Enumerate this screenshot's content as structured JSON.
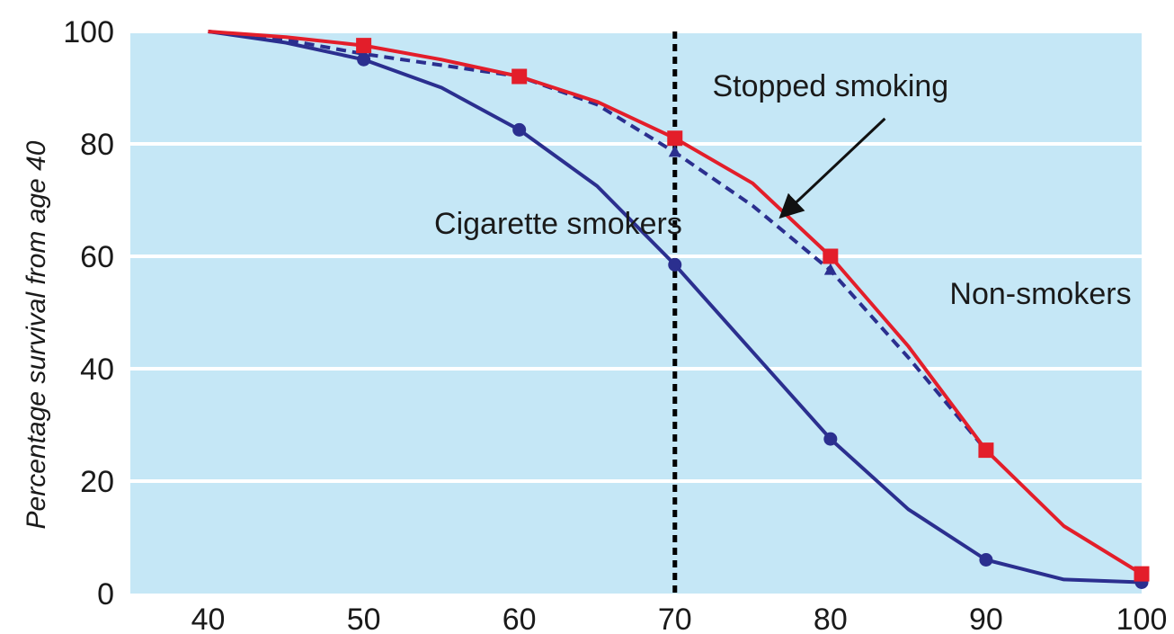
{
  "chart_data": {
    "type": "line",
    "title": "",
    "xlabel": "",
    "ylabel": "Percentage survival from age 40",
    "xlim": [
      35,
      100
    ],
    "ylim": [
      0,
      100
    ],
    "x_ticks": [
      40,
      50,
      60,
      70,
      80,
      90,
      100
    ],
    "y_ticks": [
      0,
      20,
      40,
      60,
      80,
      100
    ],
    "grid": true,
    "background_color": "#c5e7f6",
    "reference_line": {
      "x": 70,
      "style": "dotted",
      "color": "#000000"
    },
    "series": [
      {
        "name": "Cigarette smokers",
        "color": "#2b2f8f",
        "line_style": "solid",
        "marker": "circle",
        "x": [
          40,
          45,
          50,
          55,
          60,
          65,
          70,
          75,
          80,
          85,
          90,
          95,
          100
        ],
        "y": [
          100,
          98,
          95,
          90,
          82.5,
          72.5,
          58.5,
          43,
          27.5,
          15,
          6,
          2.5,
          2
        ],
        "marker_x": [
          50,
          60,
          70,
          80,
          90,
          100
        ]
      },
      {
        "name": "Stopped smoking",
        "color": "#2b2f8f",
        "line_style": "dashed",
        "marker": "triangle",
        "x": [
          40,
          45,
          50,
          55,
          60,
          65,
          70,
          75,
          80,
          85,
          90
        ],
        "y": [
          100,
          98.5,
          96,
          94,
          92,
          87,
          78.5,
          69,
          57.5,
          42,
          25.5
        ],
        "marker_x": [
          50,
          60,
          70,
          80,
          90
        ]
      },
      {
        "name": "Non-smokers",
        "color": "#e31e2a",
        "line_style": "solid",
        "marker": "square",
        "x": [
          40,
          45,
          50,
          55,
          60,
          65,
          70,
          75,
          80,
          85,
          90,
          95,
          100
        ],
        "y": [
          100,
          99,
          97.5,
          95,
          92,
          87.5,
          81,
          73,
          60,
          44,
          25.5,
          12,
          3.5
        ],
        "marker_x": [
          50,
          60,
          70,
          80,
          90,
          100
        ]
      }
    ],
    "annotations": [
      {
        "text": "Stopped smoking",
        "has_arrow": true
      },
      {
        "text": "Cigarette smokers",
        "has_arrow": false
      },
      {
        "text": "Non-smokers",
        "has_arrow": false
      }
    ]
  }
}
